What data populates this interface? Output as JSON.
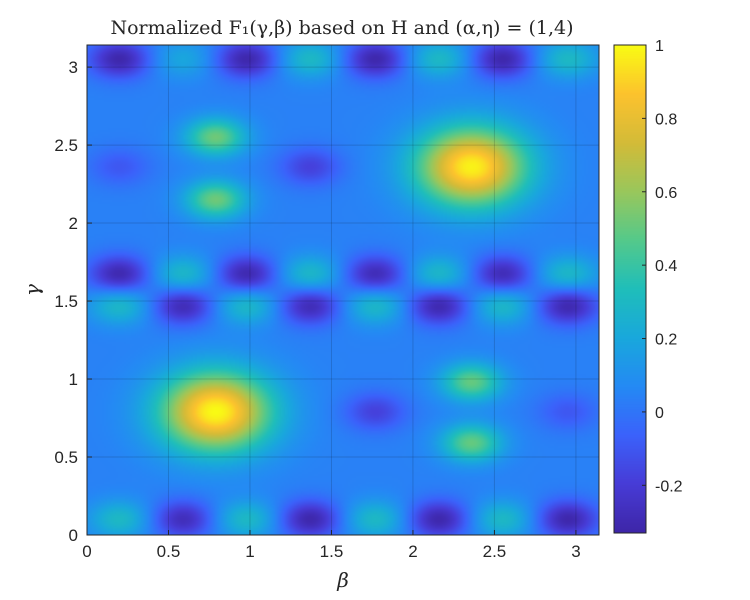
{
  "chart_data": {
    "type": "heatmap",
    "title": "Normalized F₁(γ,β) based on H and (α,η) = (1,4)",
    "xlabel": "β",
    "ylabel": "γ",
    "xlim": [
      0,
      3.1416
    ],
    "ylim": [
      0,
      3.1416
    ],
    "xticks": [
      "0",
      "0.5",
      "1",
      "1.5",
      "2",
      "2.5",
      "3"
    ],
    "yticks": [
      "0",
      "0.5",
      "1",
      "1.5",
      "2",
      "2.5",
      "3"
    ],
    "grid": true,
    "colormap": "parula",
    "colorbar": {
      "range": [
        -0.33,
        1
      ],
      "ticks": [
        "-0.2",
        "0",
        "0.2",
        "0.4",
        "0.6",
        "0.8",
        "1"
      ]
    },
    "background_level": 0.04,
    "features": [
      {
        "beta": 0.79,
        "gamma": 0.79,
        "value": 1.0
      },
      {
        "beta": 2.36,
        "gamma": 2.36,
        "value": 0.98
      },
      {
        "beta": 0.79,
        "gamma": 2.55,
        "value": 0.52
      },
      {
        "beta": 0.79,
        "gamma": 2.15,
        "value": 0.52
      },
      {
        "beta": 2.36,
        "gamma": 0.98,
        "value": 0.5
      },
      {
        "beta": 2.36,
        "gamma": 0.59,
        "value": 0.5
      },
      {
        "beta": 0.2,
        "gamma": 3.05,
        "value": -0.32
      },
      {
        "beta": 0.98,
        "gamma": 3.05,
        "value": -0.32
      },
      {
        "beta": 1.77,
        "gamma": 3.05,
        "value": -0.32
      },
      {
        "beta": 2.55,
        "gamma": 3.05,
        "value": -0.32
      },
      {
        "beta": 1.37,
        "gamma": 3.05,
        "value": 0.3
      },
      {
        "beta": 2.16,
        "gamma": 3.05,
        "value": 0.3
      },
      {
        "beta": 2.95,
        "gamma": 3.05,
        "value": 0.3
      },
      {
        "beta": 0.59,
        "gamma": 3.05,
        "value": 0.2
      },
      {
        "beta": 0.2,
        "gamma": 0.1,
        "value": 0.3
      },
      {
        "beta": 0.98,
        "gamma": 0.1,
        "value": 0.3
      },
      {
        "beta": 1.77,
        "gamma": 0.1,
        "value": 0.3
      },
      {
        "beta": 2.55,
        "gamma": 0.1,
        "value": 0.3
      },
      {
        "beta": 0.59,
        "gamma": 0.1,
        "value": -0.28
      },
      {
        "beta": 1.37,
        "gamma": 0.1,
        "value": -0.32
      },
      {
        "beta": 2.16,
        "gamma": 0.1,
        "value": -0.32
      },
      {
        "beta": 2.95,
        "gamma": 0.1,
        "value": -0.32
      },
      {
        "beta": 0.2,
        "gamma": 1.67,
        "value": -0.32
      },
      {
        "beta": 0.98,
        "gamma": 1.67,
        "value": -0.32
      },
      {
        "beta": 1.77,
        "gamma": 1.67,
        "value": -0.3
      },
      {
        "beta": 2.55,
        "gamma": 1.67,
        "value": -0.3
      },
      {
        "beta": 0.59,
        "gamma": 1.67,
        "value": 0.3
      },
      {
        "beta": 1.37,
        "gamma": 1.67,
        "value": 0.3
      },
      {
        "beta": 2.16,
        "gamma": 1.67,
        "value": 0.3
      },
      {
        "beta": 2.95,
        "gamma": 1.67,
        "value": 0.3
      },
      {
        "beta": 0.2,
        "gamma": 1.47,
        "value": 0.3
      },
      {
        "beta": 0.98,
        "gamma": 1.47,
        "value": 0.3
      },
      {
        "beta": 1.77,
        "gamma": 1.47,
        "value": 0.3
      },
      {
        "beta": 2.55,
        "gamma": 1.47,
        "value": 0.3
      },
      {
        "beta": 0.59,
        "gamma": 1.47,
        "value": -0.3
      },
      {
        "beta": 1.37,
        "gamma": 1.47,
        "value": -0.3
      },
      {
        "beta": 2.16,
        "gamma": 1.47,
        "value": -0.32
      },
      {
        "beta": 2.95,
        "gamma": 1.47,
        "value": -0.32
      },
      {
        "beta": 1.37,
        "gamma": 2.36,
        "value": -0.18
      },
      {
        "beta": 1.77,
        "gamma": 0.79,
        "value": -0.18
      },
      {
        "beta": 0.2,
        "gamma": 2.36,
        "value": -0.1
      },
      {
        "beta": 2.95,
        "gamma": 0.79,
        "value": -0.1
      }
    ]
  }
}
